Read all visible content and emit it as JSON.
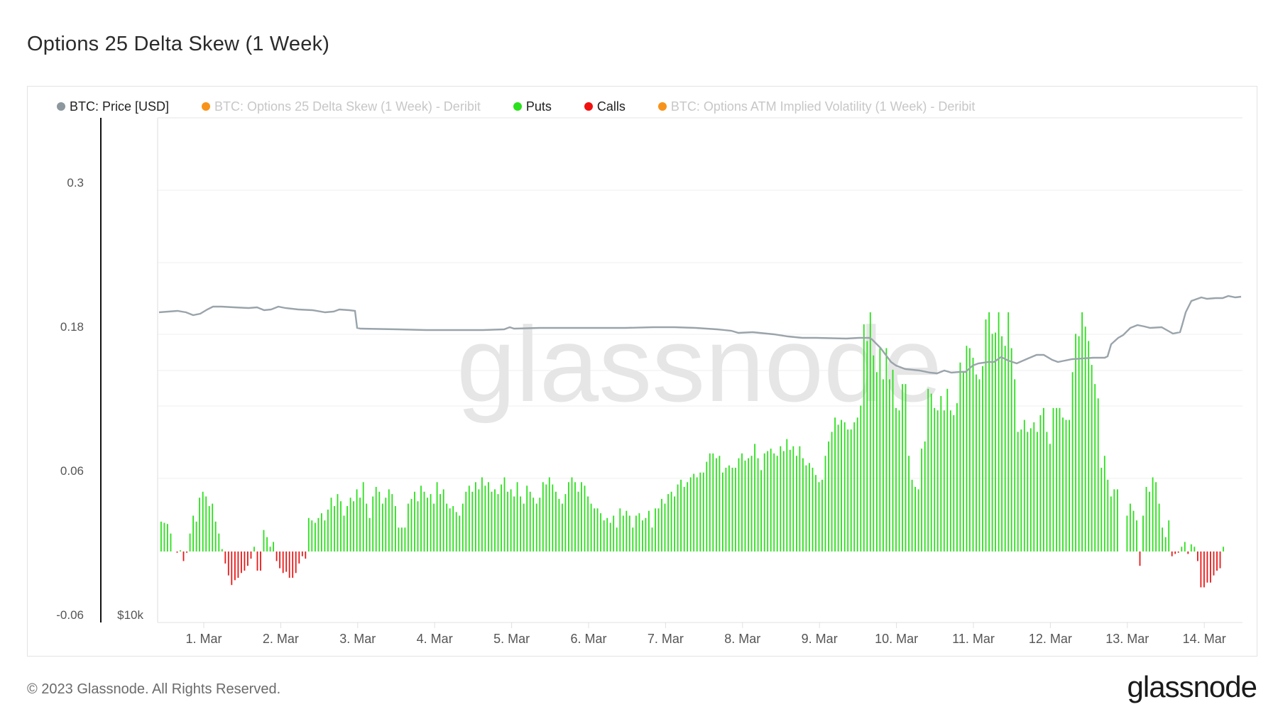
{
  "title": "Options 25 Delta Skew (1 Week)",
  "legend": [
    {
      "label": "BTC: Price [USD]",
      "color": "#8C979E",
      "muted": false
    },
    {
      "label": "BTC: Options 25 Delta Skew (1 Week) - Deribit",
      "color": "#F7931A",
      "muted": true
    },
    {
      "label": "Puts",
      "color": "#2BE01C",
      "muted": false
    },
    {
      "label": "Calls",
      "color": "#F01010",
      "muted": false
    },
    {
      "label": "BTC: Options ATM Implied Volatility (1 Week) - Deribit",
      "color": "#F7931A",
      "muted": true
    }
  ],
  "footer": {
    "copyright": "© 2023 Glassnode. All Rights Reserved.",
    "logo": "glassnode"
  },
  "watermark": "glassnode",
  "chart_data": {
    "type": "bar",
    "title": "Options 25 Delta Skew (1 Week)",
    "xlabel": "",
    "ylabel": "",
    "y_ticks": [
      "0.3",
      "0.18",
      "0.06",
      "-0.06"
    ],
    "y2_ticks": [
      "$10k"
    ],
    "ylim": [
      -0.06,
      0.36
    ],
    "x_ticks": [
      "1. Mar",
      "2. Mar",
      "3. Mar",
      "4. Mar",
      "5. Mar",
      "6. Mar",
      "7. Mar",
      "8. Mar",
      "9. Mar",
      "10. Mar",
      "11. Mar",
      "12. Mar",
      "13. Mar",
      "14. Mar"
    ],
    "grid": true,
    "legend_position": "top",
    "bar_interval": "hourly",
    "start": "28 Feb ~16:00",
    "skew_series_note": "positive = Puts (green), negative = Calls (red)",
    "skew": [
      0.025,
      0.024,
      0.023,
      0.015,
      0.0,
      -0.001,
      0.001,
      -0.008,
      -0.001,
      0.015,
      0.03,
      0.025,
      0.045,
      0.05,
      0.046,
      0.038,
      0.04,
      0.025,
      0.015,
      0.002,
      -0.01,
      -0.02,
      -0.028,
      -0.024,
      -0.022,
      -0.018,
      -0.016,
      -0.012,
      -0.006,
      0.004,
      -0.016,
      -0.016,
      0.018,
      0.012,
      0.004,
      0.008,
      -0.008,
      -0.014,
      -0.018,
      -0.017,
      -0.022,
      -0.022,
      -0.018,
      -0.01,
      -0.004,
      -0.006,
      0.028,
      0.026,
      0.024,
      0.028,
      0.032,
      0.026,
      0.035,
      0.045,
      0.038,
      0.048,
      0.042,
      0.03,
      0.038,
      0.045,
      0.042,
      0.052,
      0.045,
      0.058,
      0.04,
      0.028,
      0.046,
      0.054,
      0.05,
      0.04,
      0.045,
      0.052,
      0.048,
      0.038,
      0.02,
      0.02,
      0.02,
      0.04,
      0.044,
      0.05,
      0.042,
      0.055,
      0.05,
      0.045,
      0.048,
      0.04,
      0.058,
      0.048,
      0.052,
      0.04,
      0.036,
      0.038,
      0.033,
      0.03,
      0.04,
      0.05,
      0.055,
      0.05,
      0.058,
      0.052,
      0.062,
      0.055,
      0.058,
      0.05,
      0.052,
      0.048,
      0.056,
      0.062,
      0.05,
      0.052,
      0.046,
      0.058,
      0.046,
      0.04,
      0.055,
      0.05,
      0.045,
      0.04,
      0.045,
      0.058,
      0.056,
      0.062,
      0.056,
      0.05,
      0.044,
      0.04,
      0.048,
      0.058,
      0.062,
      0.058,
      0.05,
      0.058,
      0.055,
      0.046,
      0.04,
      0.036,
      0.036,
      0.032,
      0.026,
      0.028,
      0.024,
      0.03,
      0.02,
      0.036,
      0.03,
      0.034,
      0.03,
      0.02,
      0.03,
      0.032,
      0.026,
      0.028,
      0.034,
      0.02,
      0.036,
      0.036,
      0.044,
      0.04,
      0.048,
      0.05,
      0.046,
      0.056,
      0.06,
      0.054,
      0.058,
      0.062,
      0.065,
      0.062,
      0.066,
      0.066,
      0.075,
      0.082,
      0.082,
      0.078,
      0.08,
      0.066,
      0.07,
      0.072,
      0.07,
      0.07,
      0.078,
      0.082,
      0.076,
      0.078,
      0.08,
      0.09,
      0.078,
      0.068,
      0.082,
      0.084,
      0.086,
      0.082,
      0.08,
      0.088,
      0.084,
      0.094,
      0.085,
      0.088,
      0.08,
      0.088,
      0.078,
      0.072,
      0.074,
      0.07,
      0.064,
      0.058,
      0.06,
      0.08,
      0.092,
      0.1,
      0.112,
      0.106,
      0.11,
      0.108,
      0.102,
      0.102,
      0.108,
      0.112,
      0.122,
      0.19,
      0.176,
      0.2,
      0.164,
      0.15,
      0.17,
      0.144,
      0.17,
      0.144,
      0.152,
      0.12,
      0.118,
      0.14,
      0.14,
      0.08,
      0.06,
      0.054,
      0.052,
      0.086,
      0.092,
      0.136,
      0.132,
      0.12,
      0.118,
      0.13,
      0.118,
      0.136,
      0.118,
      0.114,
      0.124,
      0.158,
      0.15,
      0.172,
      0.17,
      0.162,
      0.148,
      0.144,
      0.155,
      0.194,
      0.2,
      0.182,
      0.183,
      0.2,
      0.18,
      0.172,
      0.2,
      0.17,
      0.144,
      0.1,
      0.102,
      0.11,
      0.1,
      0.103,
      0.108,
      0.1,
      0.114,
      0.12,
      0.1,
      0.09,
      0.12,
      0.12,
      0.12,
      0.112,
      0.11,
      0.11,
      0.15,
      0.182,
      0.18,
      0.2,
      0.188,
      0.176,
      0.156,
      0.14,
      0.128,
      0.07,
      0.08,
      0.06,
      0.046,
      0.052,
      0.052,
      0.0,
      0.0,
      0.03,
      0.04,
      0.034,
      0.026,
      -0.012,
      0.03,
      0.054,
      0.05,
      0.062,
      0.058,
      0.04,
      0.02,
      0.012,
      0.026,
      -0.004,
      -0.002,
      -0.001,
      0.004,
      0.008,
      -0.002,
      0.006,
      0.004,
      -0.008,
      -0.03,
      -0.03,
      -0.026,
      -0.026,
      -0.02,
      -0.016,
      -0.014,
      0.004
    ],
    "price_usd_shape": "gray line on secondary axis, approx 23.1k-23.6k through 1-9 Mar, dip to ~20k on 10 Mar, rising to ~24-24.5k by 14 Mar"
  }
}
